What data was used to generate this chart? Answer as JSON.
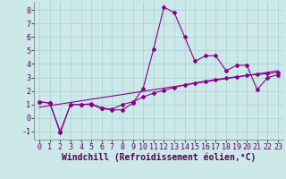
{
  "xlabel": "Windchill (Refroidissement éolien,°C)",
  "background_color": "#cce8e8",
  "grid_color": "#aad4d4",
  "line_color": "#880088",
  "xlim": [
    -0.5,
    23.5
  ],
  "ylim": [
    -1.6,
    8.6
  ],
  "yticks": [
    -1,
    0,
    1,
    2,
    3,
    4,
    5,
    6,
    7,
    8
  ],
  "xticks": [
    0,
    1,
    2,
    3,
    4,
    5,
    6,
    7,
    8,
    9,
    10,
    11,
    12,
    13,
    14,
    15,
    16,
    17,
    18,
    19,
    20,
    21,
    22,
    23
  ],
  "series1_x": [
    0,
    1,
    2,
    3,
    4,
    5,
    6,
    7,
    8,
    9,
    10,
    11,
    12,
    13,
    14,
    15,
    16,
    17,
    18,
    19,
    20,
    21,
    22,
    23
  ],
  "series1_y": [
    1.2,
    1.1,
    -1.1,
    1.0,
    1.0,
    1.0,
    0.7,
    0.6,
    0.6,
    1.1,
    2.2,
    5.1,
    8.2,
    7.8,
    6.0,
    4.2,
    4.6,
    4.6,
    3.5,
    3.9,
    3.9,
    2.1,
    3.0,
    3.2
  ],
  "series2_x": [
    0,
    1,
    2,
    3,
    4,
    5,
    6,
    7,
    8,
    9,
    10,
    11,
    12,
    13,
    14,
    15,
    16,
    17,
    18,
    19,
    20,
    21,
    22,
    23
  ],
  "series2_y": [
    1.2,
    1.1,
    -1.0,
    1.0,
    1.0,
    1.05,
    0.75,
    0.65,
    1.0,
    1.2,
    1.55,
    1.85,
    2.05,
    2.25,
    2.45,
    2.6,
    2.72,
    2.85,
    2.95,
    3.05,
    3.15,
    3.22,
    3.28,
    3.38
  ],
  "series3_x": [
    0,
    23
  ],
  "series3_y": [
    0.8,
    3.5
  ],
  "xlabel_fontsize": 7,
  "tick_fontsize": 6
}
